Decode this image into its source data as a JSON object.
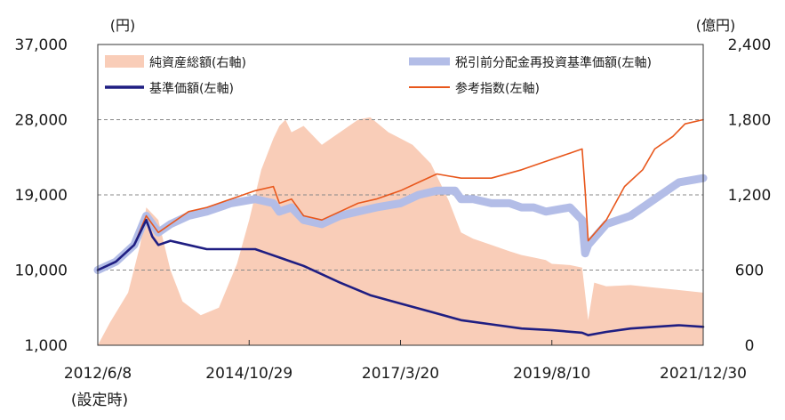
{
  "chart_data": {
    "type": "line",
    "title": "",
    "left_unit": "(円)",
    "right_unit": "(億円)",
    "left_axis": {
      "ticks": [
        "37,000",
        "28,000",
        "19,000",
        "10,000",
        "1,000"
      ],
      "tick_values": [
        37000,
        28000,
        19000,
        10000,
        1000
      ],
      "ylim": [
        1000,
        37000
      ]
    },
    "right_axis": {
      "ticks": [
        "2,400",
        "1,800",
        "1,200",
        "600",
        "0"
      ],
      "tick_values": [
        2400,
        1800,
        1200,
        600,
        0
      ],
      "ylim": [
        0,
        2400
      ]
    },
    "x_axis": {
      "ticks": [
        "2012/6/8",
        "2014/10/29",
        "2017/3/20",
        "2019/8/10",
        "2021/12/30"
      ],
      "first_tick_note": "(設定時)",
      "tick_t": [
        0,
        0.25,
        0.5,
        0.75,
        1.0
      ],
      "range": [
        "2012/6/8",
        "2021/12/30"
      ]
    },
    "grid": "dashed horizontal at 28,000 / 19,000 / 10,000",
    "legend_position": "top",
    "colors": {
      "net_assets": "#f9cdb8",
      "nav_reinvested": "#b3bde7",
      "nav": "#1f1e82",
      "index": "#e8571c",
      "grid": "#888888"
    },
    "series": [
      {
        "name": "純資産総額(右軸)",
        "axis": "right",
        "style": "area",
        "t": [
          0,
          0.02,
          0.05,
          0.07,
          0.08,
          0.1,
          0.12,
          0.14,
          0.17,
          0.2,
          0.23,
          0.25,
          0.27,
          0.29,
          0.3,
          0.31,
          0.32,
          0.34,
          0.37,
          0.4,
          0.43,
          0.45,
          0.48,
          0.5,
          0.52,
          0.55,
          0.58,
          0.6,
          0.62,
          0.65,
          0.68,
          0.7,
          0.72,
          0.74,
          0.75,
          0.78,
          0.8,
          0.81,
          0.82,
          0.84,
          0.88,
          0.92,
          0.96,
          1.0
        ],
        "values": [
          0,
          180,
          420,
          800,
          1100,
          1000,
          600,
          350,
          240,
          300,
          650,
          1000,
          1400,
          1650,
          1750,
          1800,
          1700,
          1750,
          1600,
          1700,
          1800,
          1820,
          1700,
          1650,
          1600,
          1450,
          1150,
          900,
          850,
          800,
          750,
          720,
          700,
          680,
          650,
          640,
          620,
          200,
          500,
          470,
          480,
          460,
          440,
          420
        ]
      },
      {
        "name": "税引前分配金再投資基準価額(左軸)",
        "axis": "left",
        "style": "line",
        "t": [
          0,
          0.03,
          0.06,
          0.08,
          0.1,
          0.12,
          0.15,
          0.18,
          0.22,
          0.26,
          0.29,
          0.3,
          0.32,
          0.34,
          0.37,
          0.4,
          0.43,
          0.46,
          0.5,
          0.53,
          0.56,
          0.59,
          0.6,
          0.62,
          0.65,
          0.68,
          0.7,
          0.72,
          0.74,
          0.78,
          0.8,
          0.805,
          0.81,
          0.84,
          0.88,
          0.92,
          0.96,
          1.0
        ],
        "values": [
          10000,
          11000,
          13000,
          16500,
          14500,
          15500,
          16500,
          17000,
          18000,
          18500,
          18000,
          17000,
          17500,
          16000,
          15500,
          16500,
          17000,
          17500,
          18000,
          19000,
          19500,
          19500,
          18500,
          18500,
          18000,
          18000,
          17500,
          17500,
          17000,
          17500,
          16000,
          12000,
          13000,
          15500,
          16500,
          18500,
          20500,
          21000
        ]
      },
      {
        "name": "基準価額(左軸)",
        "axis": "left",
        "style": "line",
        "t": [
          0,
          0.03,
          0.06,
          0.08,
          0.09,
          0.1,
          0.12,
          0.15,
          0.18,
          0.22,
          0.26,
          0.28,
          0.3,
          0.32,
          0.34,
          0.37,
          0.4,
          0.45,
          0.5,
          0.55,
          0.6,
          0.65,
          0.7,
          0.75,
          0.8,
          0.81,
          0.84,
          0.88,
          0.92,
          0.96,
          1.0
        ],
        "values": [
          10000,
          11000,
          13000,
          16000,
          14000,
          13000,
          13500,
          13000,
          12500,
          12500,
          12500,
          12000,
          11500,
          11000,
          10500,
          9500,
          8500,
          7000,
          6000,
          5000,
          4000,
          3500,
          3000,
          2800,
          2500,
          2200,
          2600,
          3000,
          3200,
          3400,
          3200
        ]
      },
      {
        "name": "参考指数(左軸)",
        "axis": "left",
        "style": "line",
        "t": [
          0,
          0.03,
          0.06,
          0.08,
          0.1,
          0.12,
          0.15,
          0.18,
          0.22,
          0.26,
          0.29,
          0.3,
          0.32,
          0.34,
          0.37,
          0.4,
          0.43,
          0.46,
          0.5,
          0.53,
          0.56,
          0.6,
          0.62,
          0.65,
          0.7,
          0.74,
          0.78,
          0.8,
          0.805,
          0.81,
          0.84,
          0.87,
          0.9,
          0.92,
          0.95,
          0.97,
          1.0
        ],
        "values": [
          10000,
          11000,
          13000,
          16500,
          14500,
          15500,
          17000,
          17500,
          18500,
          19500,
          20000,
          18000,
          18500,
          16500,
          16000,
          17000,
          18000,
          18500,
          19500,
          20500,
          21500,
          21000,
          21000,
          21000,
          22000,
          23000,
          24000,
          24500,
          19500,
          13500,
          16000,
          20000,
          22000,
          24500,
          26000,
          27500,
          28000
        ]
      }
    ]
  }
}
